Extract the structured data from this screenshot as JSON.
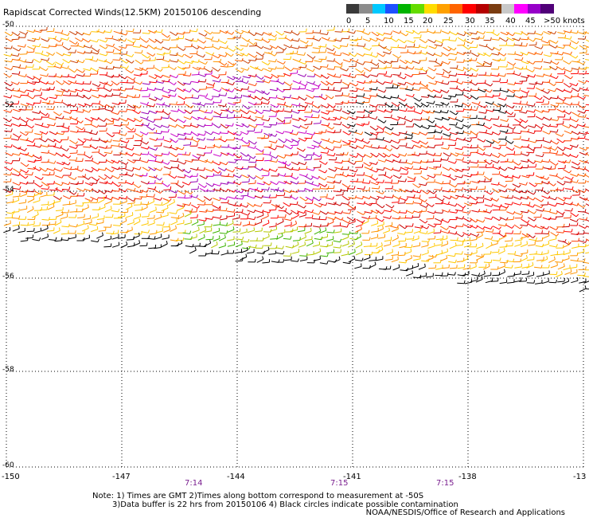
{
  "title": "Rapidscat Corrected Winds(12.5KM) 20150106 descending",
  "color_scale": {
    "labels": [
      "0",
      "5",
      "10",
      "15",
      "20",
      "25",
      "30",
      "35",
      "40",
      "45",
      ">50 knots"
    ],
    "colors": [
      "#3a3a3a",
      "#8c8c8c",
      "#00c8ff",
      "#1e50ff",
      "#00b400",
      "#64dc00",
      "#ffdc00",
      "#ffa000",
      "#ff6400",
      "#ff0000",
      "#b40000",
      "#7a3c10",
      "#c8c8c8",
      "#ff00ff",
      "#9600c8",
      "#500078"
    ]
  },
  "axes": {
    "lat_labels": [
      "-50",
      "-52",
      "-54",
      "-56",
      "-58",
      "-60"
    ],
    "lon_labels": [
      "-150",
      "-147",
      "-144",
      "-141",
      "-138",
      "-13"
    ]
  },
  "times": [
    "7:14",
    "7:15",
    "7:15"
  ],
  "notes": {
    "line1": "Note: 1) Times are GMT 2)Times along bottom correspond to measurement at -50S",
    "line2": "3)Data buffer is 22 hrs from 20150106 4) Black circles indicate possible contamination",
    "credit": "NOAA/NESDIS/Office of Research and Applications"
  }
}
